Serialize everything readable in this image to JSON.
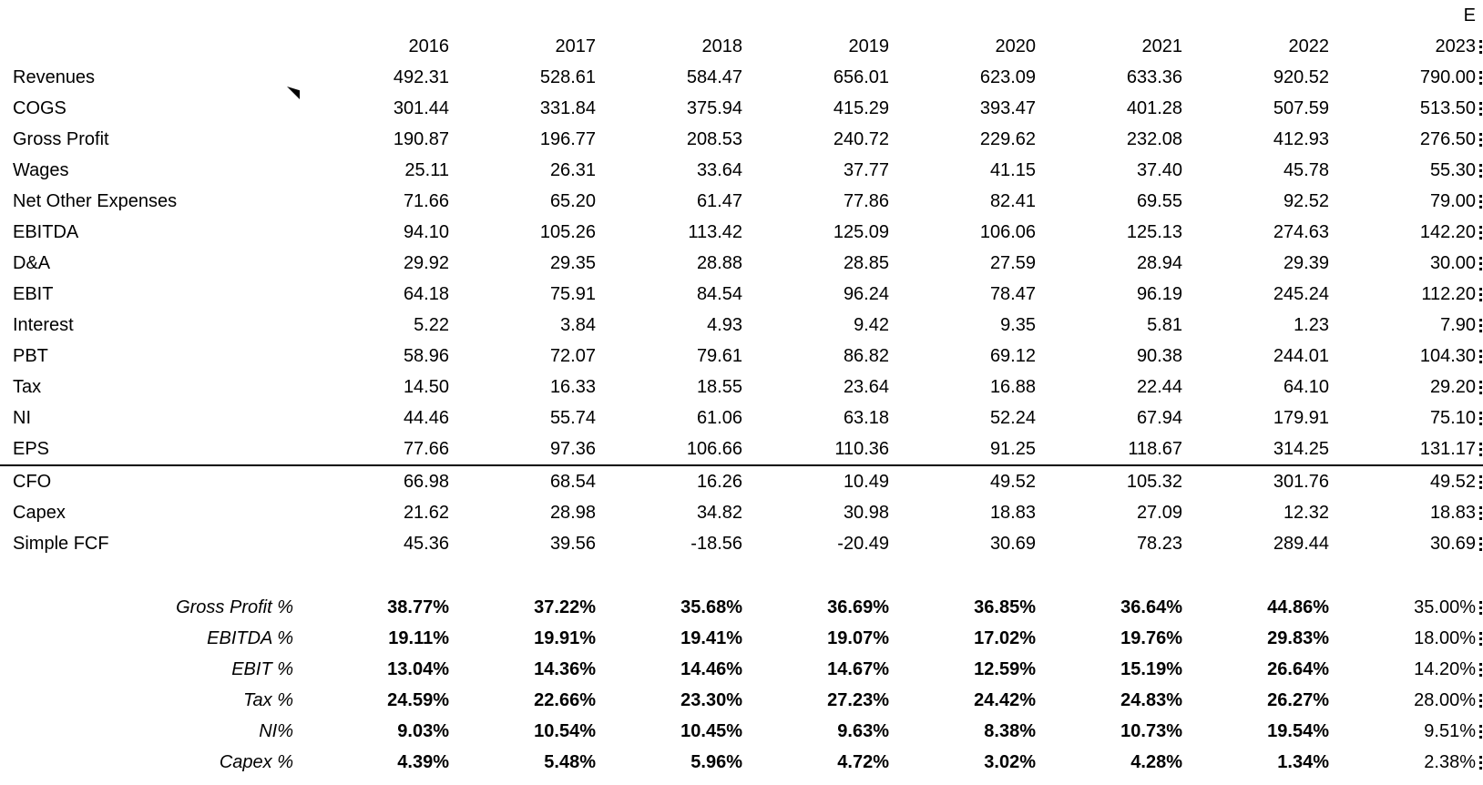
{
  "sheet": {
    "estimate_marker": "E",
    "years": [
      "2016",
      "2017",
      "2018",
      "2019",
      "2020",
      "2021",
      "2022",
      "2023"
    ],
    "sections": [
      {
        "id": "pnl",
        "rows": [
          {
            "label": "Revenues",
            "values": [
              "492.31",
              "528.61",
              "584.47",
              "656.01",
              "623.09",
              "633.36",
              "920.52",
              "790.00"
            ]
          },
          {
            "label": "COGS",
            "values": [
              "301.44",
              "331.84",
              "375.94",
              "415.29",
              "393.47",
              "401.28",
              "507.59",
              "513.50"
            ]
          },
          {
            "label": "Gross Profit",
            "values": [
              "190.87",
              "196.77",
              "208.53",
              "240.72",
              "229.62",
              "232.08",
              "412.93",
              "276.50"
            ]
          },
          {
            "label": "Wages",
            "values": [
              "25.11",
              "26.31",
              "33.64",
              "37.77",
              "41.15",
              "37.40",
              "45.78",
              "55.30"
            ]
          },
          {
            "label": "Net Other Expenses",
            "values": [
              "71.66",
              "65.20",
              "61.47",
              "77.86",
              "82.41",
              "69.55",
              "92.52",
              "79.00"
            ]
          },
          {
            "label": "EBITDA",
            "values": [
              "94.10",
              "105.26",
              "113.42",
              "125.09",
              "106.06",
              "125.13",
              "274.63",
              "142.20"
            ]
          },
          {
            "label": "D&A",
            "values": [
              "29.92",
              "29.35",
              "28.88",
              "28.85",
              "27.59",
              "28.94",
              "29.39",
              "30.00"
            ]
          },
          {
            "label": "EBIT",
            "values": [
              "64.18",
              "75.91",
              "84.54",
              "96.24",
              "78.47",
              "96.19",
              "245.24",
              "112.20"
            ]
          },
          {
            "label": "Interest",
            "values": [
              "5.22",
              "3.84",
              "4.93",
              "9.42",
              "9.35",
              "5.81",
              "1.23",
              "7.90"
            ]
          },
          {
            "label": "PBT",
            "values": [
              "58.96",
              "72.07",
              "79.61",
              "86.82",
              "69.12",
              "90.38",
              "244.01",
              "104.30"
            ]
          },
          {
            "label": "Tax",
            "values": [
              "14.50",
              "16.33",
              "18.55",
              "23.64",
              "16.88",
              "22.44",
              "64.10",
              "29.20"
            ]
          },
          {
            "label": "NI",
            "values": [
              "44.46",
              "55.74",
              "61.06",
              "63.18",
              "52.24",
              "67.94",
              "179.91",
              "75.10"
            ]
          },
          {
            "label": "EPS",
            "values": [
              "77.66",
              "97.36",
              "106.66",
              "110.36",
              "91.25",
              "118.67",
              "314.25",
              "131.17"
            ]
          }
        ]
      },
      {
        "id": "cashflow",
        "rows": [
          {
            "label": "CFO",
            "values": [
              "66.98",
              "68.54",
              "16.26",
              "10.49",
              "49.52",
              "105.32",
              "301.76",
              "49.52"
            ]
          },
          {
            "label": "Capex",
            "values": [
              "21.62",
              "28.98",
              "34.82",
              "30.98",
              "18.83",
              "27.09",
              "12.32",
              "18.83"
            ]
          },
          {
            "label": "Simple FCF",
            "values": [
              "45.36",
              "39.56",
              "-18.56",
              "-20.49",
              "30.69",
              "78.23",
              "289.44",
              "30.69"
            ]
          }
        ]
      },
      {
        "id": "ratios",
        "rows": [
          {
            "label": "Gross Profit %",
            "values": [
              "38.77%",
              "37.22%",
              "35.68%",
              "36.69%",
              "36.85%",
              "36.64%",
              "44.86%",
              "35.00%"
            ]
          },
          {
            "label": "EBITDA %",
            "values": [
              "19.11%",
              "19.91%",
              "19.41%",
              "19.07%",
              "17.02%",
              "19.76%",
              "29.83%",
              "18.00%"
            ]
          },
          {
            "label": "EBIT %",
            "values": [
              "13.04%",
              "14.36%",
              "14.46%",
              "14.67%",
              "12.59%",
              "15.19%",
              "26.64%",
              "14.20%"
            ]
          },
          {
            "label": "Tax %",
            "values": [
              "24.59%",
              "22.66%",
              "23.30%",
              "27.23%",
              "24.42%",
              "24.83%",
              "26.27%",
              "28.00%"
            ]
          },
          {
            "label": "NI%",
            "values": [
              "9.03%",
              "10.54%",
              "10.45%",
              "9.63%",
              "8.38%",
              "10.73%",
              "19.54%",
              "9.51%"
            ]
          },
          {
            "label": "Capex %",
            "values": [
              "4.39%",
              "5.48%",
              "5.96%",
              "4.72%",
              "3.02%",
              "4.28%",
              "1.34%",
              "2.38%"
            ]
          }
        ]
      }
    ]
  }
}
